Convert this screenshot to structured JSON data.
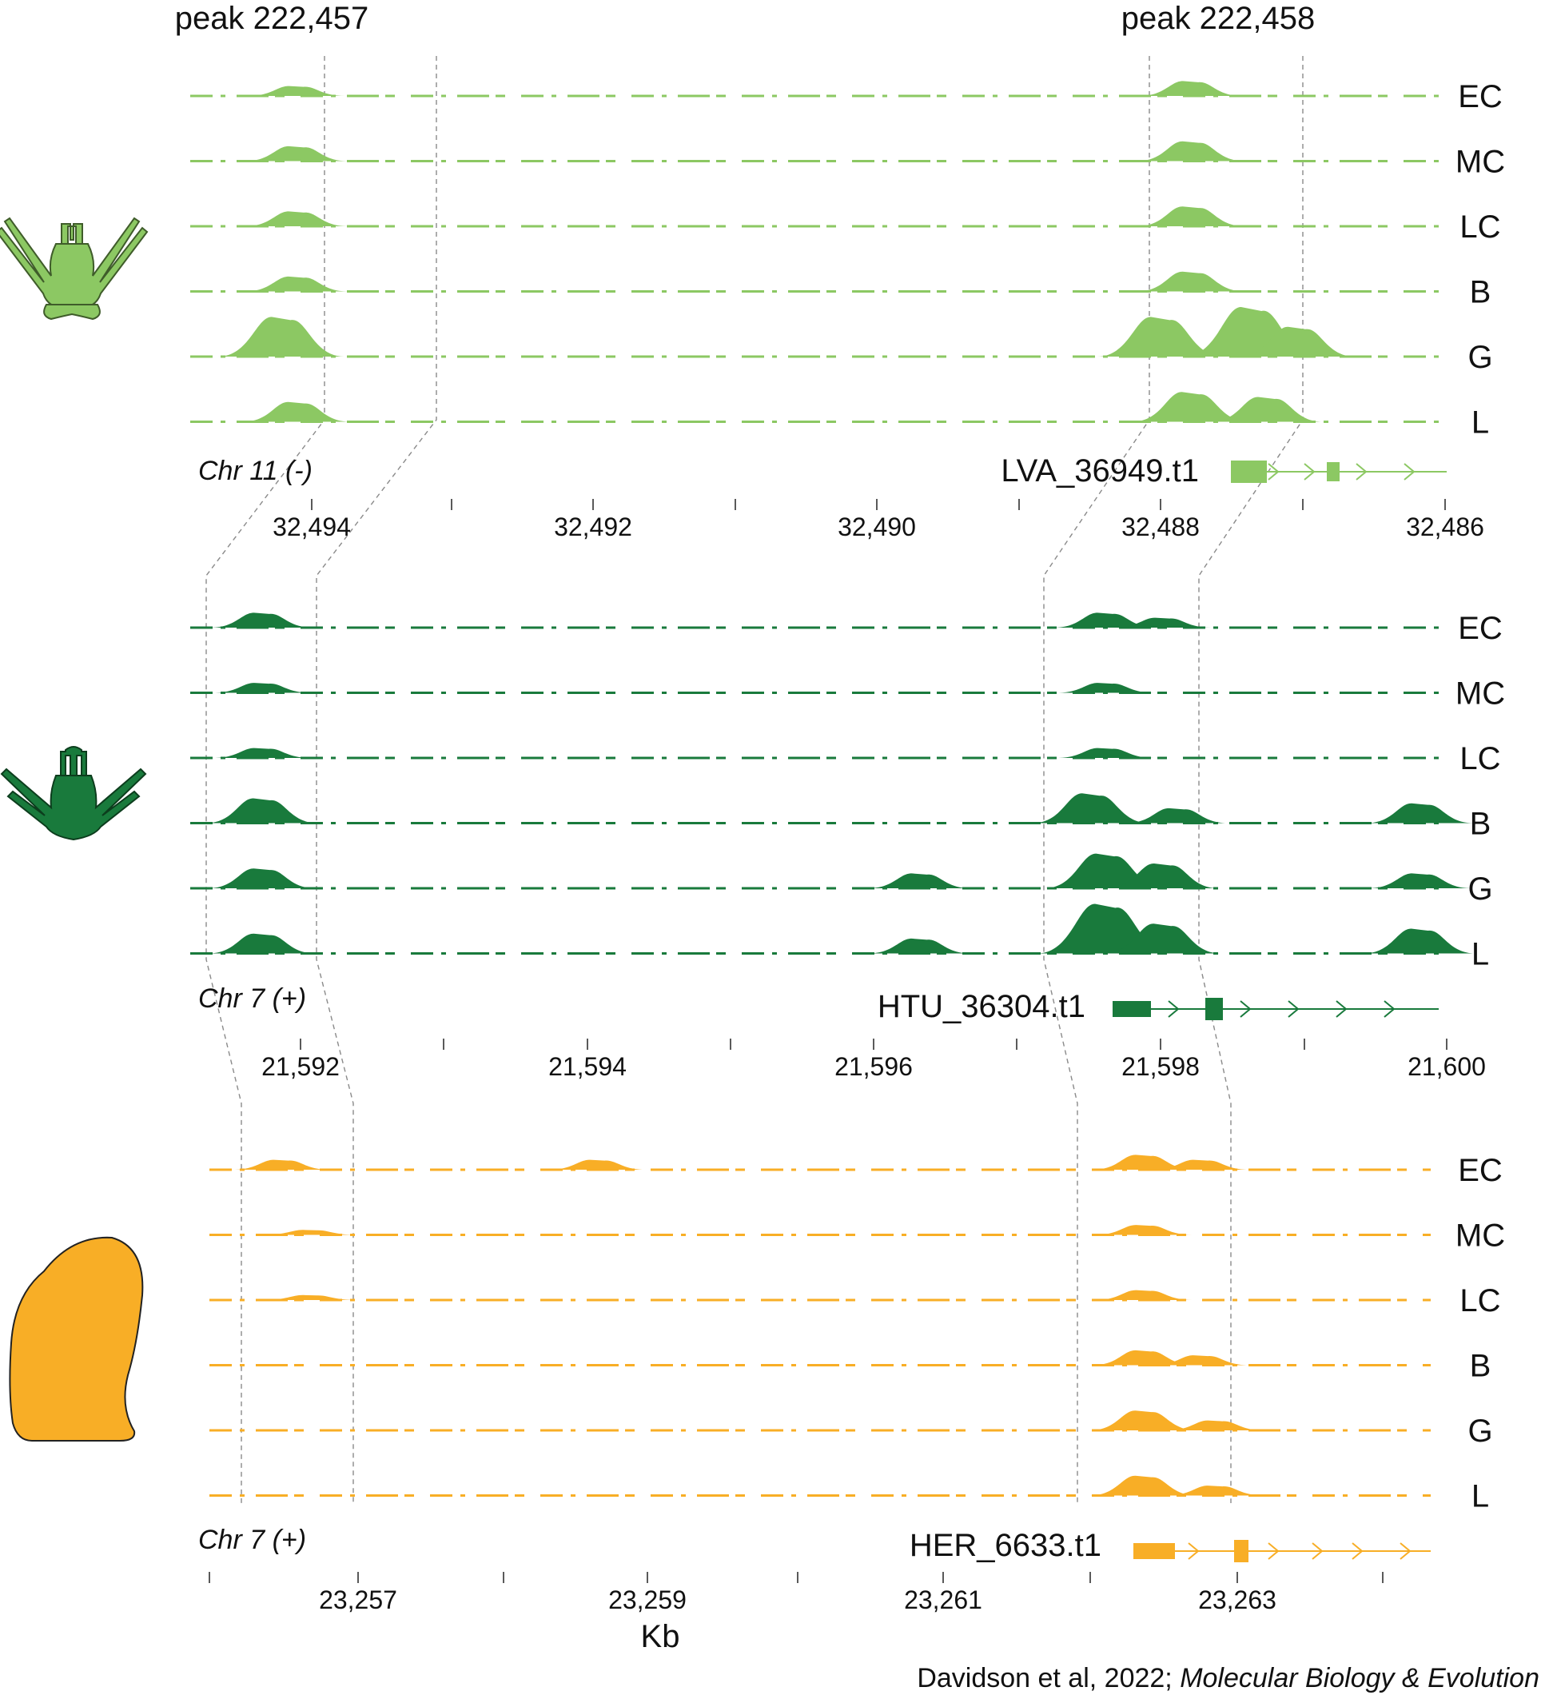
{
  "peaks": [
    "peak 222,457",
    "peak 222,458"
  ],
  "unit_label": "Kb",
  "citation": {
    "authors": "Davidson et al, 2022; ",
    "journal": "Molecular Biology & Evolution"
  },
  "colors": {
    "species1": "#8cc863",
    "species2": "#197a3c",
    "species3": "#f8ae26",
    "guide": "#8a8a8a"
  },
  "icons": [
    "light-green-pluteus-larva-icon",
    "dark-green-pluteus-larva-icon",
    "orange-ovoid-larva-icon"
  ],
  "panels": [
    {
      "chr": "Chr 11 (-)",
      "gene": "LVA_36949.t1",
      "color": "#8cc863",
      "icon": "light-green-pluteus-larva-icon",
      "ticks": [
        "32,494",
        "32,492",
        "32,490",
        "32,488",
        "32,486"
      ]
    },
    {
      "chr": "Chr 7 (+)",
      "gene": "HTU_36304.t1",
      "color": "#197a3c",
      "icon": "dark-green-pluteus-larva-icon",
      "ticks": [
        "21,592",
        "21,594",
        "21,596",
        "21,598",
        "21,600"
      ]
    },
    {
      "chr": "Chr 7 (+)",
      "gene": "HER_6633.t1",
      "color": "#f8ae26",
      "icon": "orange-ovoid-larva-icon",
      "ticks": [
        "23,257",
        "23,259",
        "23,261",
        "23,263"
      ]
    }
  ],
  "chart_data": {
    "type": "area",
    "title": "",
    "xlabel": "Kb",
    "row_labels": [
      "EC",
      "MC",
      "LC",
      "B",
      "G",
      "L"
    ],
    "series": [
      {
        "chromosome": "Chr 11 (-)",
        "gene": "LVA_36949.t1",
        "x_ticks_kb": [
          32494,
          32492,
          32490,
          32488,
          32486
        ],
        "xlim_kb": [
          32494.2,
          32485.9
        ],
        "reversed_axis": true,
        "peak_centers_kb": [
          32493.7,
          32487.6
        ],
        "tracks": {
          "EC": [
            [
              32493.5,
              0.2
            ],
            [
              32487.6,
              0.3
            ]
          ],
          "MC": [
            [
              32493.5,
              0.3
            ],
            [
              32487.6,
              0.4
            ]
          ],
          "LC": [
            [
              32493.5,
              0.3
            ],
            [
              32487.6,
              0.4
            ]
          ],
          "B": [
            [
              32493.5,
              0.3
            ],
            [
              32487.6,
              0.4
            ]
          ],
          "G": [
            [
              32493.6,
              0.8
            ],
            [
              32487.8,
              0.8
            ],
            [
              32487.2,
              1.0
            ],
            [
              32486.9,
              0.6
            ]
          ],
          "L": [
            [
              32493.5,
              0.4
            ],
            [
              32487.6,
              0.6
            ],
            [
              32487.1,
              0.5
            ]
          ]
        }
      },
      {
        "chromosome": "Chr 7 (+)",
        "gene": "HTU_36304.t1",
        "x_ticks_kb": [
          21592,
          21594,
          21596,
          21598,
          21600
        ],
        "xlim_kb": [
          21591.3,
          21600.1
        ],
        "reversed_axis": false,
        "peak_centers_kb": [
          21591.8,
          21598.4
        ],
        "tracks": {
          "EC": [
            [
              21591.8,
              0.3
            ],
            [
              21597.7,
              0.3
            ],
            [
              21598.1,
              0.2
            ]
          ],
          "MC": [
            [
              21591.8,
              0.2
            ],
            [
              21597.7,
              0.2
            ]
          ],
          "LC": [
            [
              21591.8,
              0.2
            ],
            [
              21597.7,
              0.2
            ]
          ],
          "B": [
            [
              21591.8,
              0.5
            ],
            [
              21597.6,
              0.6
            ],
            [
              21598.2,
              0.3
            ],
            [
              21599.9,
              0.4
            ]
          ],
          "G": [
            [
              21591.8,
              0.4
            ],
            [
              21596.4,
              0.3
            ],
            [
              21597.7,
              0.7
            ],
            [
              21598.1,
              0.5
            ],
            [
              21599.9,
              0.3
            ]
          ],
          "L": [
            [
              21591.8,
              0.4
            ],
            [
              21596.4,
              0.3
            ],
            [
              21597.7,
              1.0
            ],
            [
              21598.1,
              0.6
            ],
            [
              21599.9,
              0.5
            ]
          ]
        }
      },
      {
        "chromosome": "Chr 7 (+)",
        "gene": "HER_6633.t1",
        "x_ticks_kb": [
          23257,
          23259,
          23261,
          23263
        ],
        "xlim_kb": [
          23255.9,
          23264.4
        ],
        "reversed_axis": false,
        "peak_centers_kb": [
          23256.4,
          23263.1
        ],
        "tracks": {
          "EC": [
            [
              23256.4,
              0.2
            ],
            [
              23258.6,
              0.2
            ],
            [
              23262.4,
              0.3
            ],
            [
              23262.8,
              0.2
            ]
          ],
          "MC": [
            [
              23256.6,
              0.1
            ],
            [
              23262.4,
              0.2
            ]
          ],
          "LC": [
            [
              23256.6,
              0.1
            ],
            [
              23262.4,
              0.2
            ]
          ],
          "B": [
            [
              23262.4,
              0.3
            ],
            [
              23262.8,
              0.2
            ]
          ],
          "G": [
            [
              23262.4,
              0.4
            ],
            [
              23262.9,
              0.2
            ]
          ],
          "L": [
            [
              23262.4,
              0.4
            ],
            [
              23262.9,
              0.2
            ]
          ]
        }
      }
    ]
  }
}
